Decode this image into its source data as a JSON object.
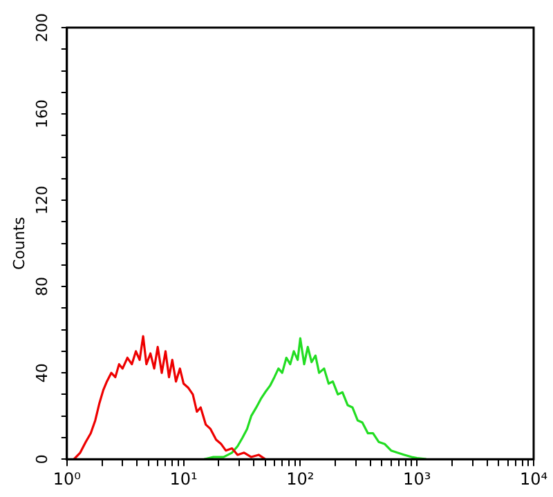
{
  "chart_data": {
    "type": "line",
    "ylabel": "Counts",
    "log": "x",
    "grid": false,
    "legend": false,
    "marker": "none",
    "line_style": "solid",
    "xlim": [
      1,
      10000
    ],
    "xticks": [
      {
        "value": 1,
        "label": "10⁰"
      },
      {
        "value": 2,
        "label": null
      },
      {
        "value": 3,
        "label": null
      },
      {
        "value": 4,
        "label": null
      },
      {
        "value": 5,
        "label": null
      },
      {
        "value": 6,
        "label": null
      },
      {
        "value": 7,
        "label": null
      },
      {
        "value": 8,
        "label": null
      },
      {
        "value": 9,
        "label": null
      },
      {
        "value": 10,
        "label": "10¹"
      },
      {
        "value": 20,
        "label": null
      },
      {
        "value": 30,
        "label": null
      },
      {
        "value": 40,
        "label": null
      },
      {
        "value": 50,
        "label": null
      },
      {
        "value": 60,
        "label": null
      },
      {
        "value": 70,
        "label": null
      },
      {
        "value": 80,
        "label": null
      },
      {
        "value": 90,
        "label": null
      },
      {
        "value": 100,
        "label": "10²"
      },
      {
        "value": 200,
        "label": null
      },
      {
        "value": 300,
        "label": null
      },
      {
        "value": 400,
        "label": null
      },
      {
        "value": 500,
        "label": null
      },
      {
        "value": 600,
        "label": null
      },
      {
        "value": 700,
        "label": null
      },
      {
        "value": 800,
        "label": null
      },
      {
        "value": 900,
        "label": null
      },
      {
        "value": 1000,
        "label": "10³"
      },
      {
        "value": 2000,
        "label": null
      },
      {
        "value": 3000,
        "label": null
      },
      {
        "value": 4000,
        "label": null
      },
      {
        "value": 5000,
        "label": null
      },
      {
        "value": 6000,
        "label": null
      },
      {
        "value": 7000,
        "label": null
      },
      {
        "value": 8000,
        "label": null
      },
      {
        "value": 9000,
        "label": null
      },
      {
        "value": 10000,
        "label": "10⁴"
      }
    ],
    "ylim": [
      0,
      200
    ],
    "yticks": [
      0,
      {
        "value": 10,
        "label": null
      },
      {
        "value": 20,
        "label": null
      },
      {
        "value": 30,
        "label": null
      },
      40,
      {
        "value": 50,
        "label": null
      },
      {
        "value": 60,
        "label": null
      },
      {
        "value": 70,
        "label": null
      },
      80,
      {
        "value": 90,
        "label": null
      },
      {
        "value": 100,
        "label": null
      },
      {
        "value": 110,
        "label": null
      },
      120,
      {
        "value": 130,
        "label": null
      },
      {
        "value": 140,
        "label": null
      },
      {
        "value": 150,
        "label": null
      },
      160,
      {
        "value": 170,
        "label": null
      },
      {
        "value": 180,
        "label": null
      },
      {
        "value": 190,
        "label": null
      },
      200
    ],
    "series": [
      {
        "color": "#ee0000",
        "x": [
          1.15,
          1.3,
          1.45,
          1.6,
          1.75,
          1.9,
          2.05,
          2.2,
          2.4,
          2.6,
          2.8,
          3.0,
          3.3,
          3.6,
          3.9,
          4.2,
          4.5,
          4.8,
          5.2,
          5.6,
          6.0,
          6.5,
          7.0,
          7.5,
          8.0,
          8.6,
          9.3,
          10,
          11,
          12,
          13,
          14,
          15.5,
          17,
          19,
          21,
          23,
          26,
          29,
          33,
          38,
          44,
          50
        ],
        "values": [
          0,
          3,
          8,
          12,
          18,
          26,
          32,
          36,
          40,
          38,
          44,
          42,
          47,
          44,
          50,
          46,
          57,
          44,
          49,
          42,
          52,
          40,
          50,
          38,
          46,
          36,
          42,
          35,
          33,
          30,
          22,
          24,
          16,
          14,
          9,
          7,
          4,
          5,
          2,
          3,
          1,
          2,
          0
        ]
      },
      {
        "color": "#22dd22",
        "x": [
          15,
          18,
          22,
          26,
          29,
          32,
          35,
          38,
          42,
          46,
          50,
          55,
          60,
          65,
          70,
          76,
          82,
          88,
          95,
          100,
          108,
          116,
          125,
          135,
          145,
          160,
          175,
          190,
          210,
          230,
          255,
          280,
          310,
          340,
          380,
          420,
          470,
          530,
          600,
          680,
          780,
          900,
          1000,
          1200
        ],
        "values": [
          0,
          1,
          1,
          3,
          6,
          10,
          14,
          20,
          24,
          28,
          31,
          34,
          38,
          42,
          40,
          47,
          44,
          50,
          46,
          56,
          44,
          52,
          45,
          48,
          40,
          42,
          35,
          36,
          30,
          31,
          25,
          24,
          18,
          17,
          12,
          12,
          8,
          7,
          4,
          3,
          2,
          1,
          0.5,
          0
        ]
      }
    ]
  }
}
